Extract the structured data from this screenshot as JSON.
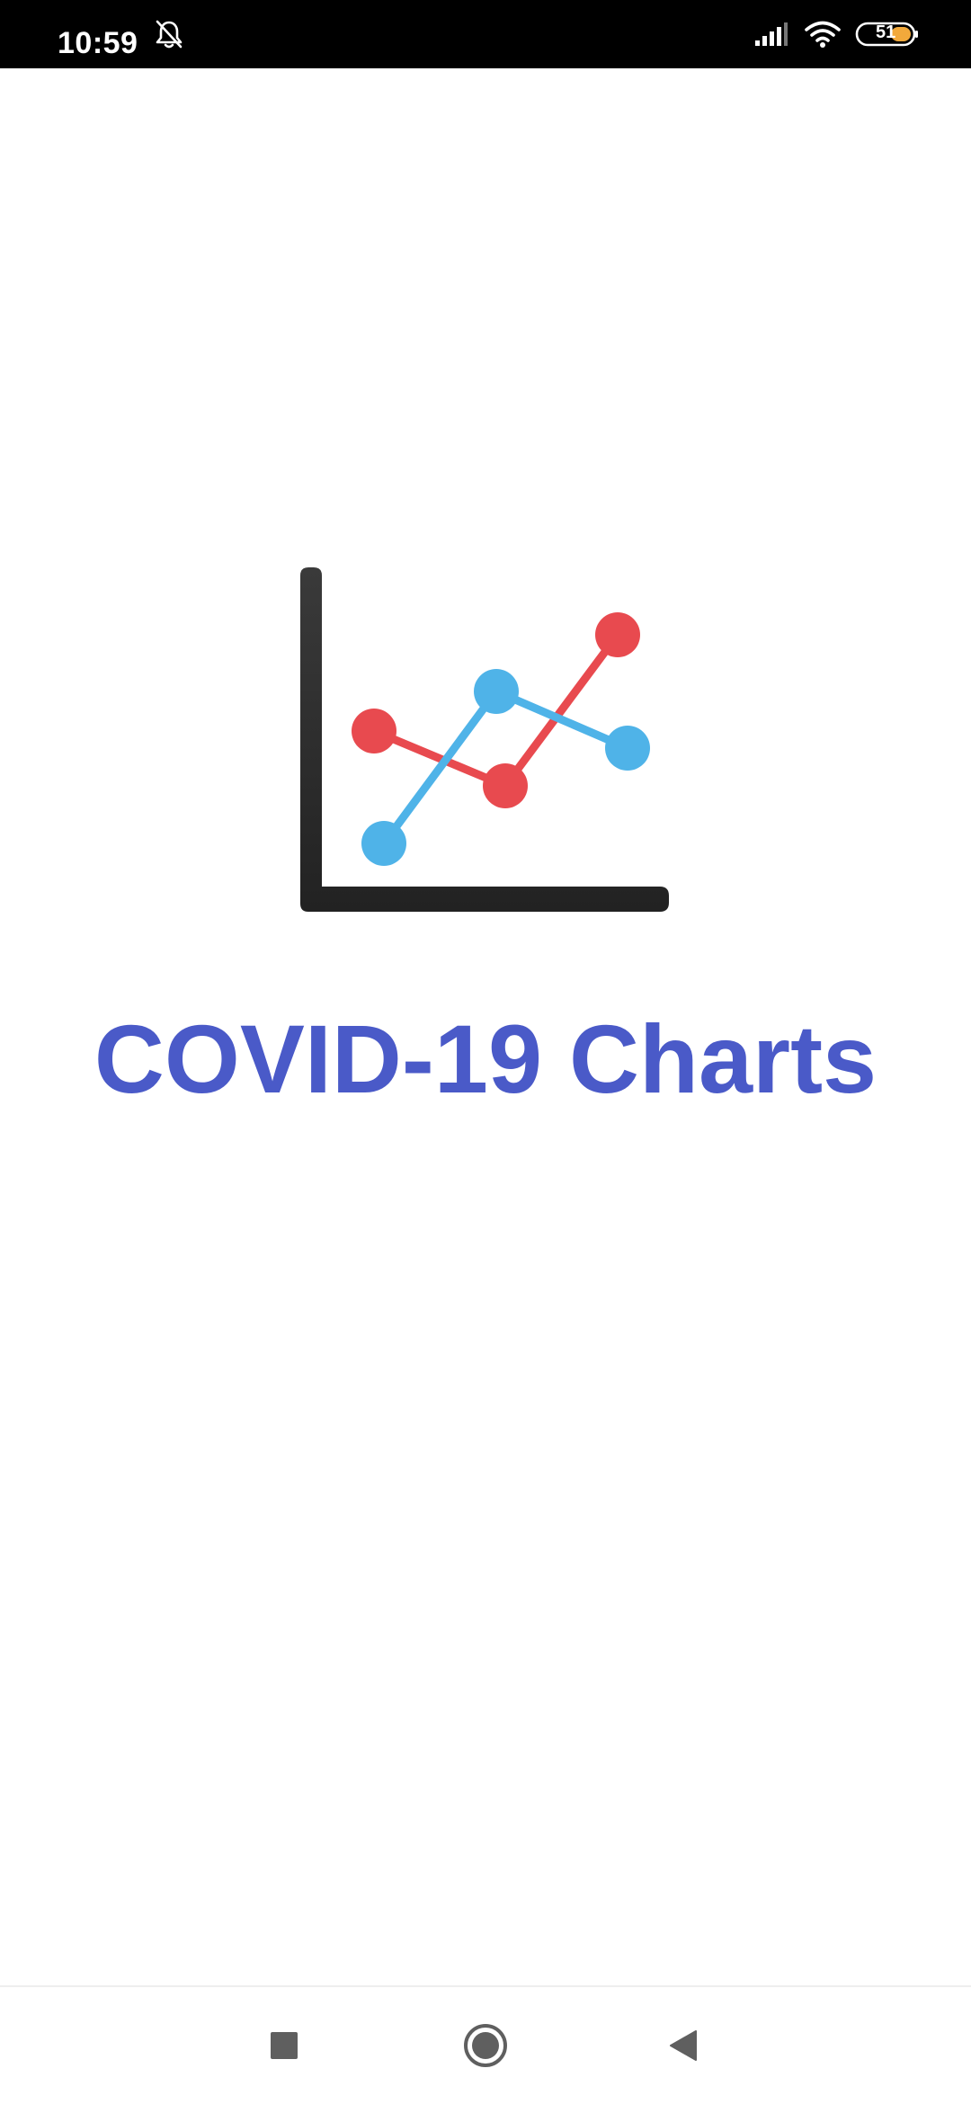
{
  "status_bar": {
    "time": "10:59",
    "battery_level": "51",
    "icons": [
      "bell-off-icon",
      "signal-icon",
      "wifi-icon",
      "battery-icon"
    ]
  },
  "splash": {
    "logo_icon": "line-chart-icon",
    "title": "COVID-19 Charts",
    "colors": {
      "title": "#4a5ac8",
      "axis": "#2b2b2b",
      "series_red": "#e84a4f",
      "series_blue": "#4fb3e8"
    }
  },
  "nav_bar": {
    "buttons": [
      "recents-button",
      "home-button",
      "back-button"
    ]
  }
}
